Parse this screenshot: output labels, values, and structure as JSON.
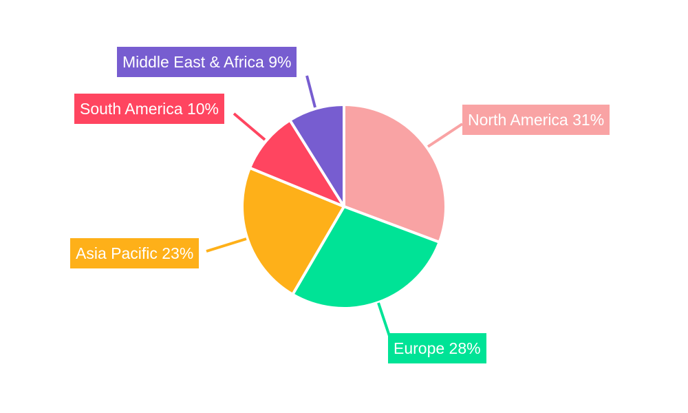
{
  "chart_data": {
    "type": "pie",
    "start_angle": "12 o'clock, clockwise",
    "legend": "none",
    "slices": [
      {
        "label": "North America",
        "value": 31,
        "display": "North America 31%",
        "color": "#f9a3a4"
      },
      {
        "label": "Europe",
        "value": 28,
        "display": "Europe 28%",
        "color": "#00e396"
      },
      {
        "label": "Asia Pacific",
        "value": 23,
        "display": "Asia Pacific 23%",
        "color": "#feb019"
      },
      {
        "label": "South America",
        "value": 10,
        "display": "South America 10%",
        "color": "#ff4560"
      },
      {
        "label": "Middle East & Africa",
        "value": 9,
        "display": "Middle East & Africa 9%",
        "color": "#775dd0"
      }
    ]
  }
}
